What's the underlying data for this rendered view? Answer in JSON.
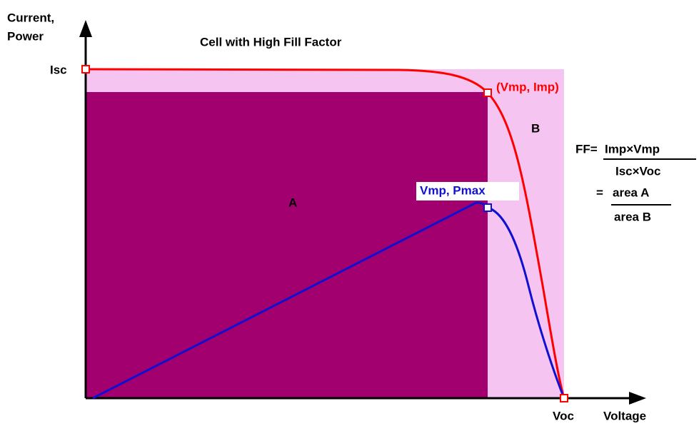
{
  "diagram": {
    "title": "Cell with High Fill Factor",
    "y_axis_label": [
      "Current,",
      "Power"
    ],
    "x_axis_label": "Voltage",
    "isc": "Isc",
    "voc": "Voc",
    "max_current_point": "(Vmp, Imp)",
    "max_power_point": "Vmp, Pmax",
    "region_a": "A",
    "region_b": "B",
    "formula": {
      "prefix": "FF=",
      "numerator": "Imp×Vmp",
      "denominator": "Isc×Voc",
      "equals": "=",
      "area_a": "area A",
      "area_b": "area B"
    }
  }
}
